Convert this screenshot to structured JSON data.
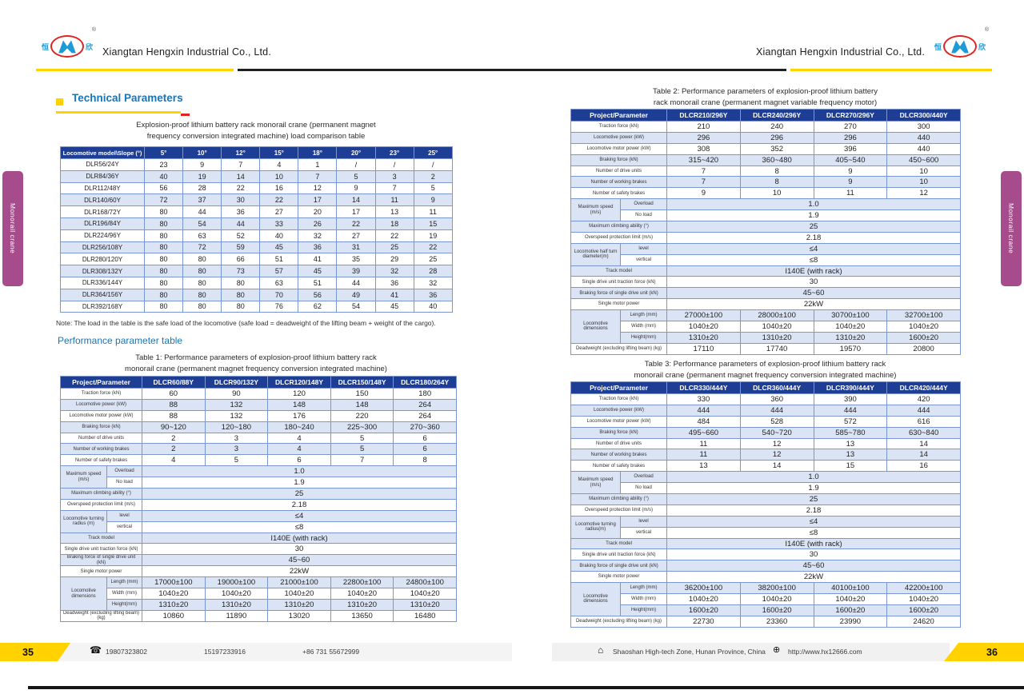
{
  "colors": {
    "accent_yellow": "#FFD200",
    "table_header_navy": "#1E3E96",
    "row_alt_blue": "#DBE4F5",
    "side_tab_magenta": "#A64B8C",
    "heading_blue": "#1B74B4",
    "logo_blue": "#1E9AD6",
    "logo_red": "#E02421"
  },
  "header": {
    "company_left": "Xiangtan Hengxin Industrial Co., Ltd.",
    "company_right": "Xiangtan Hengxin Industrial Co., Ltd.",
    "logo": {
      "left_char": "恒",
      "right_char": "欣",
      "registered": "®"
    }
  },
  "side_tabs": {
    "left": "Monorail crane",
    "right": "Monorail crane"
  },
  "icons": {
    "phone": "☎",
    "home": "⌂",
    "globe": "⊕"
  },
  "left_page": {
    "page_number": "35",
    "section_title": "Technical Parameters",
    "load_table": {
      "title": "Explosion-proof lithium battery rack monorail crane (permanent magnet\nfrequency conversion integrated machine) load comparison table",
      "header": [
        "Locomotive model\\Slope (°)",
        "5°",
        "10°",
        "12°",
        "15°",
        "18°",
        "20°",
        "23°",
        "25°"
      ],
      "rows": [
        {
          "model": "DLR56/24Y",
          "values": [
            "23",
            "9",
            "7",
            "4",
            "1",
            "/",
            "/",
            "/"
          ]
        },
        {
          "model": "DLR84/36Y",
          "values": [
            "40",
            "19",
            "14",
            "10",
            "7",
            "5",
            "3",
            "2"
          ]
        },
        {
          "model": "DLR112/48Y",
          "values": [
            "56",
            "28",
            "22",
            "16",
            "12",
            "9",
            "7",
            "5"
          ]
        },
        {
          "model": "DLR140/60Y",
          "values": [
            "72",
            "37",
            "30",
            "22",
            "17",
            "14",
            "11",
            "9"
          ]
        },
        {
          "model": "DLR168/72Y",
          "values": [
            "80",
            "44",
            "36",
            "27",
            "20",
            "17",
            "13",
            "11"
          ]
        },
        {
          "model": "DLR196/84Y",
          "values": [
            "80",
            "54",
            "44",
            "33",
            "26",
            "22",
            "18",
            "15"
          ]
        },
        {
          "model": "DLR224/96Y",
          "values": [
            "80",
            "63",
            "52",
            "40",
            "32",
            "27",
            "22",
            "19"
          ]
        },
        {
          "model": "DLR256/108Y",
          "values": [
            "80",
            "72",
            "59",
            "45",
            "36",
            "31",
            "25",
            "22"
          ]
        },
        {
          "model": "DLR280/120Y",
          "values": [
            "80",
            "80",
            "66",
            "51",
            "41",
            "35",
            "29",
            "25"
          ]
        },
        {
          "model": "DLR308/132Y",
          "values": [
            "80",
            "80",
            "73",
            "57",
            "45",
            "39",
            "32",
            "28"
          ]
        },
        {
          "model": "DLR336/144Y",
          "values": [
            "80",
            "80",
            "80",
            "63",
            "51",
            "44",
            "36",
            "32"
          ]
        },
        {
          "model": "DLR364/156Y",
          "values": [
            "80",
            "80",
            "80",
            "70",
            "56",
            "49",
            "41",
            "36"
          ]
        },
        {
          "model": "DLR392/168Y",
          "values": [
            "80",
            "80",
            "80",
            "76",
            "62",
            "54",
            "45",
            "40"
          ]
        }
      ]
    },
    "note": "Note: The load in the table is the safe load of the locomotive (safe load = deadweight of the lifting beam + weight of the cargo).",
    "subsection_title": "Performance parameter table",
    "table1": {
      "title": "Table 1: Performance parameters of explosion-proof lithium battery rack\nmonorail crane (permanent magnet frequency conversion integrated machine)",
      "header": [
        "Project/Parameter",
        "DLCR60/88Y",
        "DLCR90/132Y",
        "DLCR120/148Y",
        "DLCR150/148Y",
        "DLCR180/264Y"
      ],
      "rows": [
        {
          "type": "simple",
          "label": "Traction force (kN)",
          "values": [
            "60",
            "90",
            "120",
            "150",
            "180"
          ]
        },
        {
          "type": "simple",
          "label": "Locomotive power (kW)",
          "values": [
            "88",
            "132",
            "148",
            "148",
            "264"
          ]
        },
        {
          "type": "simple",
          "label": "Locomotive motor power (kW)",
          "values": [
            "88",
            "132",
            "176",
            "220",
            "264"
          ]
        },
        {
          "type": "simple",
          "label": "Braking force (kN)",
          "values": [
            "90~120",
            "120~180",
            "180~240",
            "225~300",
            "270~360"
          ]
        },
        {
          "type": "simple",
          "label": "Number of drive units",
          "values": [
            "2",
            "3",
            "4",
            "5",
            "6"
          ]
        },
        {
          "type": "simple",
          "label": "Number of working brakes",
          "values": [
            "2",
            "3",
            "4",
            "5",
            "6"
          ]
        },
        {
          "type": "simple",
          "label": "Number of safety brakes",
          "values": [
            "4",
            "5",
            "6",
            "7",
            "8"
          ]
        },
        {
          "type": "group",
          "label": "Maximum speed (m/s)",
          "sub": [
            [
              "Overload",
              "1.0"
            ],
            [
              "No load",
              "1.9"
            ]
          ]
        },
        {
          "type": "span",
          "label": "Maximum climbing ability (°)",
          "value": "25"
        },
        {
          "type": "span",
          "label": "Overspeed protection limit (m/s)",
          "value": "2.18"
        },
        {
          "type": "group",
          "label": "Locomotive turning radius (m)",
          "sub": [
            [
              "level",
              "≤4"
            ],
            [
              "vertical",
              "≤8"
            ]
          ]
        },
        {
          "type": "span",
          "label": "Track model",
          "value": "I140E (with rack)"
        },
        {
          "type": "span",
          "label": "Single drive unit traction force (kN)",
          "value": "30"
        },
        {
          "type": "span",
          "label": "Braking force of single drive unit (kN)",
          "value": "45~60"
        },
        {
          "type": "span",
          "label": "Single motor power",
          "value": "22kW"
        },
        {
          "type": "group",
          "label": "Locomotive dimensions",
          "sub": [
            [
              "Length (mm)",
              [
                "17000±100",
                "19000±100",
                "21000±100",
                "22800±100",
                "24800±100"
              ]
            ],
            [
              "Width (mm)",
              [
                "1040±20",
                "1040±20",
                "1040±20",
                "1040±20",
                "1040±20"
              ]
            ],
            [
              "Height(mm)",
              [
                "1310±20",
                "1310±20",
                "1310±20",
                "1310±20",
                "1310±20"
              ]
            ]
          ]
        },
        {
          "type": "simple",
          "label": "Deadweight (excluding lifting beam) (kg)",
          "values": [
            "10860",
            "11890",
            "13020",
            "13650",
            "16480"
          ]
        }
      ]
    },
    "footer": {
      "phone1": "19807323802",
      "phone2": "15197233916",
      "phone3": "+86 731 55672999"
    }
  },
  "right_page": {
    "page_number": "36",
    "table2": {
      "title": "Table 2: Performance parameters of explosion-proof lithium battery\nrack monorail crane (permanent magnet variable frequency motor)",
      "header": [
        "Project/Parameter",
        "DLCR210/296Y",
        "DLCR240/296Y",
        "DLCR270/296Y",
        "DLCR300/440Y"
      ],
      "rows": [
        {
          "type": "simple",
          "label": "Traction force (kN)",
          "values": [
            "210",
            "240",
            "270",
            "300"
          ]
        },
        {
          "type": "simple",
          "label": "Locomotive power (kW)",
          "values": [
            "296",
            "296",
            "296",
            "440"
          ]
        },
        {
          "type": "simple",
          "label": "Locomotive motor power (kW)",
          "values": [
            "308",
            "352",
            "396",
            "440"
          ]
        },
        {
          "type": "simple",
          "label": "Braking force (kN)",
          "values": [
            "315~420",
            "360~480",
            "405~540",
            "450~600"
          ]
        },
        {
          "type": "simple",
          "label": "Number of drive units",
          "values": [
            "7",
            "8",
            "9",
            "10"
          ]
        },
        {
          "type": "simple",
          "label": "Number of working brakes",
          "values": [
            "7",
            "8",
            "9",
            "10"
          ]
        },
        {
          "type": "simple",
          "label": "Number of safety brakes",
          "values": [
            "9",
            "10",
            "11",
            "12"
          ]
        },
        {
          "type": "group",
          "label": "Maximum speed (m/s)",
          "sub": [
            [
              "Overload",
              "1.0"
            ],
            [
              "No load",
              "1.9"
            ]
          ]
        },
        {
          "type": "span",
          "label": "Maximum climbing ability (°)",
          "value": "25"
        },
        {
          "type": "span",
          "label": "Overspeed protection limit (m/s)",
          "value": "2.18"
        },
        {
          "type": "group",
          "label": "Locomotive half turn diameter(m)",
          "sub": [
            [
              "level",
              "≤4"
            ],
            [
              "vertical",
              "≤8"
            ]
          ]
        },
        {
          "type": "span",
          "label": "Track model",
          "value": "I140E (with rack)"
        },
        {
          "type": "span",
          "label": "Single drive unit traction force (kN)",
          "value": "30"
        },
        {
          "type": "span",
          "label": "Braking force of single drive unit (kN)",
          "value": "45~60"
        },
        {
          "type": "span",
          "label": "Single motor power",
          "value": "22kW"
        },
        {
          "type": "group",
          "label": "Locomotive dimensions",
          "sub": [
            [
              "Length (mm)",
              [
                "27000±100",
                "28000±100",
                "30700±100",
                "32700±100"
              ]
            ],
            [
              "Width (mm)",
              [
                "1040±20",
                "1040±20",
                "1040±20",
                "1040±20"
              ]
            ],
            [
              "Height(mm)",
              [
                "1310±20",
                "1310±20",
                "1310±20",
                "1600±20"
              ]
            ]
          ]
        },
        {
          "type": "simple",
          "label": "Deadweight (excluding lifting beam) (kg)",
          "values": [
            "17110",
            "17740",
            "19570",
            "20800"
          ]
        }
      ]
    },
    "table3": {
      "title": "Table 3: Performance parameters of explosion-proof lithium battery rack\nmonorail crane (permanent magnet frequency conversion integrated machine)",
      "header": [
        "Project/Parameter",
        "DLCR330/444Y",
        "DLCR360/444Y",
        "DLCR390/444Y",
        "DLCR420/444Y"
      ],
      "rows": [
        {
          "type": "simple",
          "label": "Traction force (kN)",
          "values": [
            "330",
            "360",
            "390",
            "420"
          ]
        },
        {
          "type": "simple",
          "label": "Locomotive power (kW)",
          "values": [
            "444",
            "444",
            "444",
            "444"
          ]
        },
        {
          "type": "simple",
          "label": "Locomotive motor power (kW)",
          "values": [
            "484",
            "528",
            "572",
            "616"
          ]
        },
        {
          "type": "simple",
          "label": "Braking force (kN)",
          "values": [
            "495~660",
            "540~720",
            "585~780",
            "630~840"
          ]
        },
        {
          "type": "simple",
          "label": "Number of drive units",
          "values": [
            "11",
            "12",
            "13",
            "14"
          ]
        },
        {
          "type": "simple",
          "label": "Number of working brakes",
          "values": [
            "11",
            "12",
            "13",
            "14"
          ]
        },
        {
          "type": "simple",
          "label": "Number of safety brakes",
          "values": [
            "13",
            "14",
            "15",
            "16"
          ]
        },
        {
          "type": "group",
          "label": "Maximum speed (m/s)",
          "sub": [
            [
              "Overload",
              "1.0"
            ],
            [
              "No load",
              "1.9"
            ]
          ]
        },
        {
          "type": "span",
          "label": "Maximum climbing ability (°)",
          "value": "25"
        },
        {
          "type": "span",
          "label": "Overspeed protection limit (m/s)",
          "value": "2.18"
        },
        {
          "type": "group",
          "label": "Locomotive turning radius(m)",
          "sub": [
            [
              "level",
              "≤4"
            ],
            [
              "vertical",
              "≤8"
            ]
          ]
        },
        {
          "type": "span",
          "label": "Track model",
          "value": "I140E (with rack)"
        },
        {
          "type": "span",
          "label": "Single drive unit traction force (kN)",
          "value": "30"
        },
        {
          "type": "span",
          "label": "Braking force of single drive unit (kN)",
          "value": "45~60"
        },
        {
          "type": "span",
          "label": "Single motor power",
          "value": "22kW"
        },
        {
          "type": "group",
          "label": "Locomotive dimensions",
          "sub": [
            [
              "Length (mm)",
              [
                "36200±100",
                "38200±100",
                "40100±100",
                "42200±100"
              ]
            ],
            [
              "Width (mm)",
              [
                "1040±20",
                "1040±20",
                "1040±20",
                "1040±20"
              ]
            ],
            [
              "Height(mm)",
              [
                "1600±20",
                "1600±20",
                "1600±20",
                "1600±20"
              ]
            ]
          ]
        },
        {
          "type": "simple",
          "label": "Deadweight (excluding lifting beam) (kg)",
          "values": [
            "22730",
            "23360",
            "23990",
            "24620"
          ]
        }
      ]
    },
    "footer": {
      "address": "Shaoshan High-tech Zone, Hunan Province, China",
      "website": "http://www.hx12666.com"
    }
  }
}
